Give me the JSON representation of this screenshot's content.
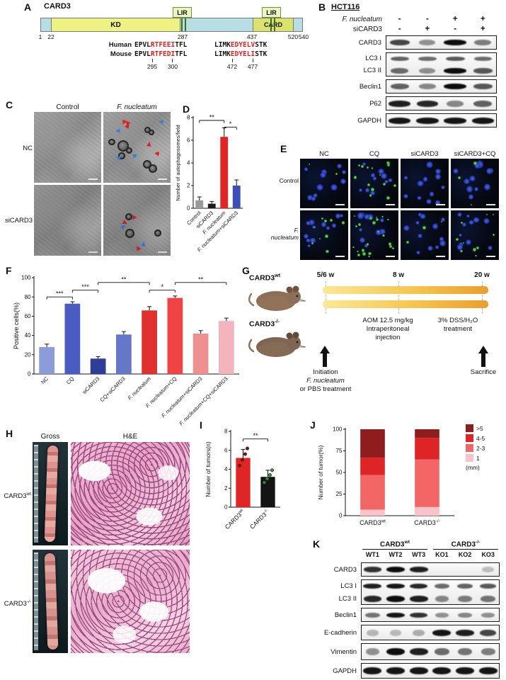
{
  "panels": {
    "A": {
      "label": "A",
      "protein": "CARD3",
      "kd": "KD",
      "card": "CARD",
      "lir": "LIR",
      "ticks": [
        "1",
        "22",
        "287",
        "437",
        "520",
        "540"
      ],
      "species1": "Human",
      "species2": "Mouse",
      "seq1_human": [
        {
          "t": "EPVL"
        },
        {
          "t": "RTFEEI",
          "red": true
        },
        {
          "t": "TFL"
        }
      ],
      "seq1_mouse": [
        {
          "t": "EPVL"
        },
        {
          "t": "RTFEDI",
          "red": true
        },
        {
          "t": "TFL"
        }
      ],
      "seq2_human": [
        {
          "t": "LIMK"
        },
        {
          "t": "EDYELV",
          "red": true
        },
        {
          "t": "STK"
        }
      ],
      "seq2_mouse": [
        {
          "t": "LIMK"
        },
        {
          "t": "EDYELI",
          "red": true
        },
        {
          "t": "STK"
        }
      ],
      "pos1": [
        "295",
        "300"
      ],
      "pos2": [
        "472",
        "477"
      ]
    },
    "B": {
      "label": "B",
      "cell_line": "HCT116",
      "conditions": [
        {
          "name": [
            {
              "t": "F. nucleatum",
              "i": true
            }
          ],
          "symbols": [
            "-",
            "-",
            "+",
            "+"
          ]
        },
        {
          "name": [
            {
              "t": "siCARD3"
            }
          ],
          "symbols": [
            "-",
            "+",
            "-",
            "+"
          ]
        }
      ],
      "blot": {
        "lanes": 4,
        "boxes": [
          {
            "rows": [
              {
                "label": [
                  {
                    "t": "CARD3"
                  }
                ],
                "h": 20,
                "bandH": 8,
                "bands": [
                  0.7,
                  0.3,
                  1,
                  0.4
                ]
              }
            ]
          },
          {
            "rows": [
              {
                "label": [
                  {
                    "t": "LC3 I"
                  }
                ],
                "h": 17,
                "bandH": 6,
                "bands": [
                  0.55,
                  0.5,
                  0.6,
                  0.5
                ]
              },
              {
                "label": [
                  {
                    "t": "LC3 II"
                  }
                ],
                "h": 17,
                "bandH": 8,
                "bands": [
                  0.5,
                  0.3,
                  1,
                  0.6
                ]
              }
            ]
          },
          {
            "rows": [
              {
                "label": [
                  {
                    "t": "Beclin1"
                  }
                ],
                "h": 20,
                "bandH": 8,
                "bands": [
                  0.55,
                  0.35,
                  1,
                  0.6
                ]
              }
            ]
          },
          {
            "rows": [
              {
                "label": [
                  {
                    "t": "P62"
                  }
                ],
                "h": 20,
                "bandH": 9,
                "bands": [
                  0.9,
                  0.85,
                  0.35,
                  0.55
                ]
              }
            ]
          },
          {
            "rows": [
              {
                "label": [
                  {
                    "t": "GAPDH"
                  }
                ],
                "h": 20,
                "bandH": 9,
                "bands": [
                  0.95,
                  0.95,
                  0.95,
                  0.95
                ]
              }
            ]
          }
        ]
      }
    },
    "C": {
      "label": "C",
      "col_headers": [
        [
          {
            "t": "Control"
          }
        ],
        [
          {
            "t": "F. nucleatum",
            "i": true
          }
        ]
      ],
      "row_headers": [
        [
          {
            "t": "NC"
          }
        ],
        [
          {
            "t": "siCARD3"
          }
        ]
      ],
      "images": [
        {
          "vesicles": 0,
          "red": 0,
          "blue": 0,
          "seed": 11
        },
        {
          "vesicles": 8,
          "red": 5,
          "blue": 4,
          "seed": 23
        },
        {
          "vesicles": 0,
          "red": 0,
          "blue": 0,
          "seed": 37
        },
        {
          "vesicles": 3,
          "red": 3,
          "blue": 2,
          "seed": 51
        }
      ]
    },
    "D": {
      "label": "D",
      "chart": {
        "type": "bar",
        "ylabel": "Number of autophagosomes/field",
        "ymax": 8,
        "ticks": [
          0,
          2,
          4,
          6,
          8
        ],
        "categories": [
          [
            {
              "t": "Control"
            }
          ],
          [
            {
              "t": "siCARD3"
            }
          ],
          [
            {
              "t": "F. nucleatum",
              "i": true
            }
          ],
          [
            {
              "t": "F. nucleatum",
              "i": true
            },
            {
              "t": "+siCARD3"
            }
          ]
        ],
        "values": [
          0.7,
          0.4,
          6.3,
          2.0
        ],
        "errors": [
          0.3,
          0.2,
          0.8,
          0.5
        ],
        "colors": [
          "#9a9a9a",
          "#1c1c1c",
          "#e02525",
          "#3c50b8"
        ],
        "sig": [
          {
            "from": 0,
            "to": 2,
            "label": "**",
            "h": 7.75
          },
          {
            "from": 2,
            "to": 3,
            "label": "*",
            "h": 7.15
          }
        ]
      }
    },
    "E": {
      "label": "E",
      "col_headers": [
        [
          {
            "t": "NC"
          }
        ],
        [
          {
            "t": "CQ"
          }
        ],
        [
          {
            "t": "siCARD3"
          }
        ],
        [
          {
            "t": "siCARD3+CQ"
          }
        ]
      ],
      "row_headers": [
        [
          {
            "t": "Control"
          }
        ],
        [
          {
            "t": "F. nucleatum",
            "i": true
          }
        ]
      ],
      "images": [
        {
          "blue": 11,
          "green": 2,
          "seed": 5
        },
        {
          "blue": 10,
          "green": 14,
          "seed": 17
        },
        {
          "blue": 12,
          "green": 0,
          "seed": 29
        },
        {
          "blue": 11,
          "green": 3,
          "seed": 41
        },
        {
          "blue": 12,
          "green": 9,
          "seed": 53
        },
        {
          "blue": 10,
          "green": 22,
          "seed": 67
        },
        {
          "blue": 12,
          "green": 3,
          "seed": 79
        },
        {
          "blue": 11,
          "green": 10,
          "seed": 97
        }
      ]
    },
    "F": {
      "label": "F",
      "chart": {
        "type": "bar",
        "ylabel": "Positive cells(%)",
        "ymax": 100,
        "ticks": [
          0,
          20,
          40,
          60,
          80,
          100
        ],
        "categories": [
          [
            {
              "t": "NC"
            }
          ],
          [
            {
              "t": "CQ"
            }
          ],
          [
            {
              "t": "siCARD3"
            }
          ],
          [
            {
              "t": "CQ+siCARD3"
            }
          ],
          [
            {
              "t": "F. nucleatum",
              "i": true
            }
          ],
          [
            {
              "t": "F. nucleatum",
              "i": true
            },
            {
              "t": "+CQ"
            }
          ],
          [
            {
              "t": "F. nucleatum",
              "i": true
            },
            {
              "t": "+siCARD3"
            }
          ],
          [
            {
              "t": "F. nucleatum",
              "i": true
            },
            {
              "t": "+CQ+siCARD3"
            }
          ]
        ],
        "values": [
          28,
          73,
          16,
          41,
          66,
          79,
          42,
          55
        ],
        "errors": [
          3,
          2,
          2,
          3,
          4,
          2,
          3,
          3
        ],
        "colors": [
          "#8c9cd8",
          "#4a5cc2",
          "#2e3e96",
          "#6577c6",
          "#e03030",
          "#f04343",
          "#ef9090",
          "#f4b4be"
        ],
        "sig": [
          {
            "from": 0,
            "to": 1,
            "label": "***",
            "h": 80
          },
          {
            "from": 1,
            "to": 2,
            "label": "***",
            "h": 87
          },
          {
            "from": 2,
            "to": 4,
            "label": "**",
            "h": 95
          },
          {
            "from": 4,
            "to": 5,
            "label": "*",
            "h": 87
          },
          {
            "from": 5,
            "to": 7,
            "label": "**",
            "h": 95
          }
        ]
      }
    },
    "G": {
      "label": "G",
      "mouse1": [
        {
          "t": "CARD3"
        },
        {
          "t": "wt",
          "sup": true
        }
      ],
      "mouse2": [
        {
          "t": "CARD3"
        },
        {
          "t": "-/-",
          "sup": true
        }
      ],
      "timepoints": [
        "5/6 w",
        "8 w",
        "20 w"
      ],
      "aom": [
        "AOM 12.5 mg/kg",
        "Intraperitoneal",
        "injection"
      ],
      "dss": [
        "3% DSS/H₂O",
        "treatment"
      ],
      "initiation": [
        [
          {
            "t": "Initiation"
          }
        ],
        [
          {
            "t": "F. nucleatum",
            "i": true
          }
        ],
        [
          {
            "t": "or PBS treatment"
          }
        ]
      ],
      "sacrifice": "Sacrifice"
    },
    "H": {
      "label": "H",
      "col_headers": [
        "Gross",
        "H&E"
      ],
      "row_headers": [
        [
          {
            "t": "CARD3"
          },
          {
            "t": "wt",
            "sup": true
          }
        ],
        [
          {
            "t": "CARD3"
          },
          {
            "t": "-/-",
            "sup": true
          }
        ]
      ]
    },
    "I": {
      "label": "I",
      "chart": {
        "type": "bar",
        "ylabel": "Number of tumors(n)",
        "ymax": 8,
        "ticks": [
          0,
          2,
          4,
          6,
          8
        ],
        "categories": [
          [
            {
              "t": "CARD3"
            },
            {
              "t": "wt",
              "sup": true
            }
          ],
          [
            {
              "t": "CARD3"
            },
            {
              "t": "-/-",
              "sup": true
            }
          ]
        ],
        "values": [
          5.2,
          3.2
        ],
        "errors": [
          0.9,
          0.7
        ],
        "colors": [
          "#e02525",
          "#141414"
        ],
        "dots": [
          [
            4.4,
            5.0,
            5.6,
            6.2
          ],
          [
            2.6,
            3.0,
            3.4,
            3.9
          ]
        ],
        "dotColors": [
          "#7d1414",
          "#2e8b3d"
        ],
        "sig": [
          {
            "from": 0,
            "to": 1,
            "label": "**",
            "h": 7.2
          }
        ]
      }
    },
    "J": {
      "label": "J",
      "chart": {
        "type": "stacked-bar",
        "ylabel": "Number of tumor(%)",
        "ymax": 100,
        "ticks": [
          0,
          25,
          50,
          75,
          100
        ],
        "categories": [
          [
            {
              "t": "CARD3"
            },
            {
              "t": "wt",
              "sup": true
            }
          ],
          [
            {
              "t": "CARD3"
            },
            {
              "t": "-/-",
              "sup": true
            }
          ]
        ],
        "segments": [
          "1",
          "2-3",
          "4-5",
          ">5"
        ],
        "segColors": [
          "#f8c3ca",
          "#f26666",
          "#de2424",
          "#8f1d1d"
        ],
        "series": [
          [
            7,
            40,
            20,
            33
          ],
          [
            10,
            55,
            25,
            10
          ]
        ]
      },
      "legend": {
        "items": [
          {
            "label": ">5",
            "color": "#8f1d1d"
          },
          {
            "label": "4-5",
            "color": "#de2424"
          },
          {
            "label": "2-3",
            "color": "#f26666"
          },
          {
            "label": "1",
            "color": "#f8c3ca"
          }
        ],
        "unit": "(mm)"
      }
    },
    "K": {
      "label": "K",
      "groups": [
        {
          "name": [
            {
              "t": "CARD3"
            },
            {
              "t": "wt",
              "sup": true
            }
          ],
          "lanes": [
            "WT1",
            "WT2",
            "WT3"
          ]
        },
        {
          "name": [
            {
              "t": "CARD3"
            },
            {
              "t": "-/-",
              "sup": true
            }
          ],
          "lanes": [
            "KO1",
            "KO2",
            "KO3"
          ]
        }
      ],
      "blot": {
        "lanes": 6,
        "boxes": [
          {
            "rows": [
              {
                "label": [
                  {
                    "t": "CARD3"
                  }
                ],
                "h": 20,
                "bandH": 8,
                "bands": [
                  0.8,
                  1,
                  0.9,
                  0,
                  0,
                  0.06
                ]
              }
            ]
          },
          {
            "rows": [
              {
                "label": [
                  {
                    "t": "LC3 I"
                  }
                ],
                "h": 18,
                "bandH": 7,
                "bands": [
                  0.9,
                  0.95,
                  0.85,
                  0.5,
                  0.55,
                  0.6
                ]
              },
              {
                "label": [
                  {
                    "t": "LC3 II"
                  }
                ],
                "h": 18,
                "bandH": 9,
                "bands": [
                  0.85,
                  1,
                  0.9,
                  0.35,
                  0.4,
                  0.45
                ]
              }
            ]
          },
          {
            "rows": [
              {
                "label": [
                  {
                    "t": "Beclin1"
                  }
                ],
                "h": 20,
                "bandH": 7,
                "bands": [
                  0.45,
                  0.95,
                  0.8,
                  0.3,
                  0.35,
                  0.3
                ]
              }
            ]
          },
          {
            "rows": [
              {
                "label": [
                  {
                    "t": "E-cadherin"
                  }
                ],
                "h": 22,
                "bandH": 9,
                "bands": [
                  0.1,
                  0.08,
                  0.15,
                  0.95,
                  0.9,
                  0.7
                ]
              }
            ]
          },
          {
            "rows": [
              {
                "label": [
                  {
                    "t": "Vimentin"
                  }
                ],
                "h": 24,
                "bandH": 10,
                "bands": [
                  0.3,
                  1,
                  0.9,
                  0.5,
                  0.45,
                  0.4
                ]
              }
            ]
          },
          {
            "rows": [
              {
                "label": [
                  {
                    "t": "GAPDH"
                  }
                ],
                "h": 22,
                "bandH": 10,
                "bands": [
                  0.95,
                  0.95,
                  0.95,
                  0.95,
                  0.95,
                  0.95
                ]
              }
            ]
          }
        ]
      }
    }
  }
}
